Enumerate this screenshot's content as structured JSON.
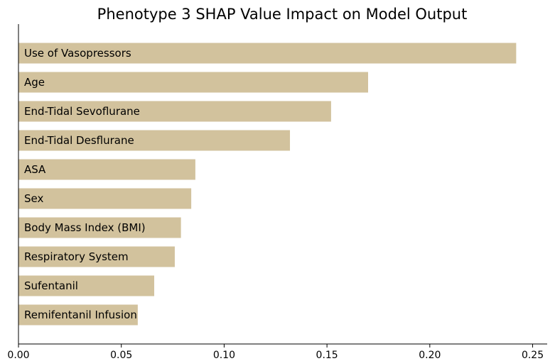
{
  "chart_data": {
    "type": "bar",
    "orientation": "horizontal",
    "title": "Phenotype 3 SHAP Value Impact on Model Output",
    "xlabel": "",
    "ylabel": "",
    "categories": [
      "Use of Vasopressors",
      "Age",
      "End-Tidal Sevoflurane",
      "End-Tidal Desflurane",
      "ASA",
      "Sex",
      "Body Mass Index (BMI)",
      "Respiratory System",
      "Sufentanil",
      "Remifentanil Infusion"
    ],
    "values": [
      0.242,
      0.17,
      0.152,
      0.132,
      0.086,
      0.084,
      0.079,
      0.076,
      0.066,
      0.058
    ],
    "xlim": [
      0,
      0.255
    ],
    "xticks": [
      0.0,
      0.05,
      0.1,
      0.15,
      0.2,
      0.25
    ],
    "xtick_labels": [
      "0.00",
      "0.05",
      "0.10",
      "0.15",
      "0.20",
      "0.25"
    ],
    "bar_color": "#d2c29d",
    "grid": false,
    "legend": "none"
  }
}
